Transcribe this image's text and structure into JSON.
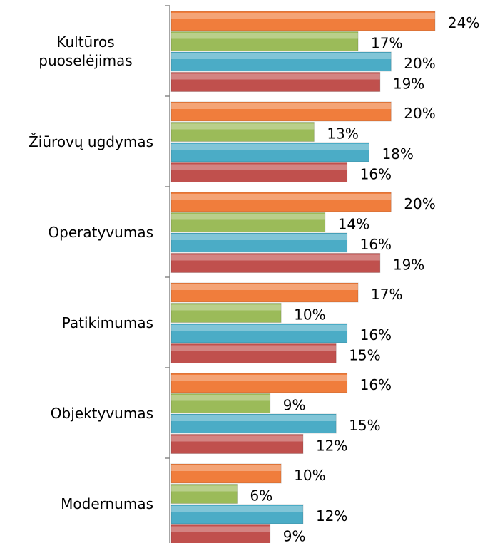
{
  "chart_data": {
    "type": "hbar",
    "categories": [
      "Kultūros puoselėjimas",
      "Žiūrovų ugdymas",
      "Operatyvumas",
      "Patikimumas",
      "Objektyvumas",
      "Modernumas"
    ],
    "series": [
      {
        "color": "#f07d3c",
        "values": [
          24,
          20,
          20,
          17,
          16,
          10
        ],
        "value_labels": [
          "24%",
          "20%",
          "20%",
          "17%",
          "16%",
          "10%"
        ]
      },
      {
        "color": "#9bbb59",
        "values": [
          17,
          13,
          14,
          10,
          9,
          6
        ],
        "value_labels": [
          "17%",
          "13%",
          "14%",
          "10%",
          "9%",
          "6%"
        ]
      },
      {
        "color": "#4bacc6",
        "values": [
          20,
          18,
          16,
          16,
          15,
          12
        ],
        "value_labels": [
          "20%",
          "18%",
          "16%",
          "16%",
          "15%",
          "12%"
        ]
      },
      {
        "color": "#c0504d",
        "values": [
          19,
          16,
          19,
          15,
          12,
          9
        ],
        "value_labels": [
          "19%",
          "16%",
          "19%",
          "15%",
          "12%",
          "9%"
        ]
      }
    ],
    "xlim": [
      0,
      29
    ]
  }
}
